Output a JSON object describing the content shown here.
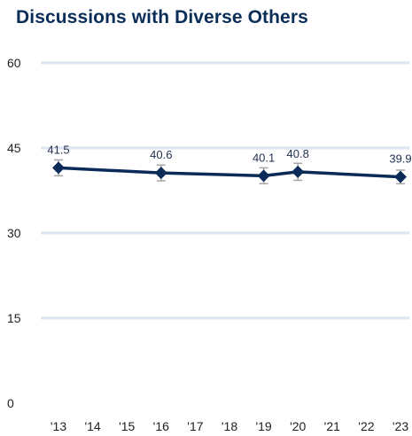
{
  "colors": {
    "title": "#0b2e59",
    "gridline": "#dce6f2",
    "series_line": "#0a2a57",
    "marker": "#0a2a57",
    "error_bar": "#a6a6a6",
    "axis_text": "#1f1f1f"
  },
  "chart_data": {
    "type": "line",
    "title": "Discussions with Diverse Others",
    "xlabel": "",
    "ylabel": "",
    "x_categories": [
      "'13",
      "'14",
      "'15",
      "'16",
      "'17",
      "'18",
      "'19",
      "'20",
      "'21",
      "'22",
      "'23"
    ],
    "ylim": [
      0,
      60
    ],
    "yticks": [
      0,
      15,
      30,
      45,
      60
    ],
    "grid": "horizontal",
    "legend": "none",
    "series": [
      {
        "marker": "diamond",
        "points": [
          {
            "x": "'13",
            "y": 41.5,
            "label": "41.5",
            "err_low": 40.1,
            "err_high": 42.9
          },
          {
            "x": "'16",
            "y": 40.6,
            "label": "40.6",
            "err_low": 39.2,
            "err_high": 42.0
          },
          {
            "x": "'19",
            "y": 40.1,
            "label": "40.1",
            "err_low": 38.7,
            "err_high": 41.5
          },
          {
            "x": "'20",
            "y": 40.8,
            "label": "40.8",
            "err_low": 39.3,
            "err_high": 42.3
          },
          {
            "x": "'23",
            "y": 39.9,
            "label": "39.9",
            "err_low": 38.7,
            "err_high": 41.1
          }
        ]
      }
    ]
  }
}
